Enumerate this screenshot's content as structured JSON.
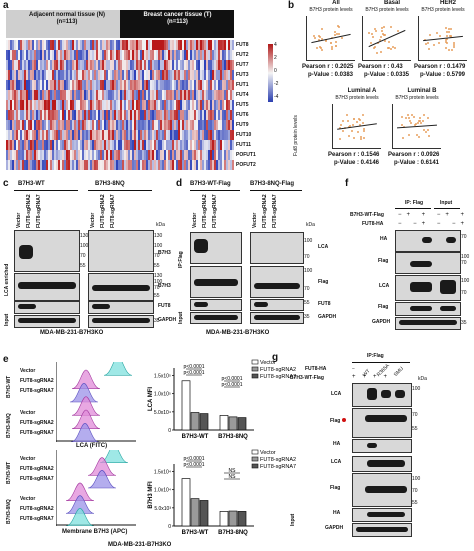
{
  "panel_a": {
    "letter": "a",
    "group_normal": "Adjacent normal tissue (N)\n(n=113)",
    "group_normal_l1": "Adjacent normal tissue (N)",
    "group_normal_l2": "(n=113)",
    "group_tumor_l1": "Breast cancer tissue (T)",
    "group_tumor_l2": "(n=113)",
    "tissue_label": "Tissue",
    "genes": [
      "FUT8",
      "FUT2",
      "FUT7",
      "FUT3",
      "FUT1",
      "FUT4",
      "FUT5",
      "FUT6",
      "FUT9",
      "FUT10",
      "FUT11",
      "POFUT1",
      "POFUT2"
    ],
    "scale": [
      "4",
      "2",
      "0",
      "-2",
      "-4"
    ]
  },
  "panel_b": {
    "letter": "b",
    "ylabel": "Fut8 protein levels",
    "plots": [
      {
        "group": "All",
        "xlabel": "B7H3 protein levels",
        "r": "Pearson  r : 0.2025",
        "p": "p-Value : 0.0383"
      },
      {
        "group": "Basal",
        "xlabel": "B7H3 protein levels",
        "r": "Pearson  r : 0.43",
        "p": "p-Value : 0.0335"
      },
      {
        "group": "HER2",
        "xlabel": "B7H3 protein levels",
        "r": "Pearson  r : 0.1479",
        "p": "p-Value : 0.5799"
      },
      {
        "group": "Luminal A",
        "xlabel": "B7H3 protein levels",
        "r": "Pearson  r : 0.1546",
        "p": "p-Value : 0.4146"
      },
      {
        "group": "Luminal B",
        "xlabel": "B7H3 protein levels",
        "r": "Pearson  r : 0.0926",
        "p": "p-Value : 0.6141"
      }
    ]
  },
  "panel_c": {
    "letter": "c",
    "title_left": "B7H3-WT",
    "title_right": "B7H3-8NQ",
    "lanes": [
      "Vector",
      "FUT8-sgRNA2",
      "FUT8-sgRNA7"
    ],
    "kda": "kDa",
    "marks_top": [
      "130",
      "100",
      "70",
      "55"
    ],
    "marks_mid": [
      "130",
      "100",
      "70",
      "55"
    ],
    "marks_bottom": [
      "35"
    ],
    "side_lca": "LCA enriched",
    "side_input": "Input",
    "rows": [
      "B7H3",
      "B7H3",
      "FUT8",
      "GAPDH"
    ],
    "footer": "MDA-MB-231-B7H3KO"
  },
  "panel_d": {
    "letter": "d",
    "title_left": "B7H3-WT-Flag",
    "title_right": "B7H3-8NQ-Flag",
    "lanes": [
      "Vector",
      "FUT8-sgRNA2",
      "FUT8-sgRNA7"
    ],
    "kda": "kDa",
    "side_ip": "IP:Flag",
    "side_input": "Input",
    "rows": [
      "LCA",
      "Flag",
      "FUT8",
      "GAPDH"
    ],
    "marks": [
      "100",
      "70",
      "100",
      "70",
      "55",
      "35"
    ],
    "footer": "MDA-MB-231-B7H3KO"
  },
  "panel_e": {
    "letter": "e",
    "hist_top_xlabel": "LCA (FITC)",
    "hist_bottom_xlabel": "Membrane  B7H3 (APC)",
    "row_labels": [
      "Vector",
      "FUT8-sgRNA2",
      "FUT8-sgRNA7"
    ],
    "group_wt": "B7H3-WT",
    "group_8nq": "B7H3-8NQ",
    "footer": "MDA-MB-231-B7H3KO",
    "legend": [
      "Vector",
      "FUT8-sgRNA2",
      "FUT8-sgRNA7"
    ],
    "bar_top": {
      "ylabel": "LCA MFI",
      "yticks": [
        "1.5x10⁵",
        "1.0x10⁵",
        "5.0x10⁴",
        "0"
      ],
      "categories": [
        "B7H3-WT",
        "B7H3-8NQ"
      ],
      "pvals": [
        "p<0.0001",
        "p<0.0001",
        "p<0.0001",
        "p<0.0001"
      ]
    },
    "bar_bottom": {
      "ylabel": "B7H3 MFI",
      "yticks": [
        "1.5x10⁴",
        "1.0x10⁴",
        "5.0x10³",
        "0"
      ],
      "categories": [
        "B7H3-WT",
        "B7H3-8NQ"
      ],
      "pvals": [
        "p<0.0001",
        "p<0.0001",
        "NS",
        "NS"
      ]
    }
  },
  "panel_f": {
    "letter": "f",
    "ip_label": "IP: Flag",
    "input_label": "Input",
    "row_cond1": "B7H3-WT-Flag",
    "row_cond2": "FUT8-HA",
    "marks": [
      "70",
      "100",
      "70",
      "100",
      "70",
      "35"
    ],
    "kda": "kDa",
    "rows": [
      "HA",
      "Flag",
      "LCA",
      "Flag",
      "GAPDH"
    ]
  },
  "panel_g": {
    "letter": "g",
    "ip_label": "IP:Flag",
    "cond1": "FUT8-HA",
    "cond2": "B7H3-WT-Flag",
    "lanes": [
      "WT",
      "R365A",
      "SMU"
    ],
    "kda": "kDa",
    "marks": [
      "100",
      "70",
      "55",
      "100",
      "70",
      "55"
    ],
    "rows": [
      "LCA",
      "Flag",
      "HA",
      "LCA",
      "Flag",
      "HA",
      "GAPDH"
    ],
    "side_input": "Input"
  },
  "chart_data": [
    {
      "type": "bar",
      "title": "",
      "ylabel": "LCA MFI",
      "categories": [
        "B7H3-WT",
        "B7H3-8NQ"
      ],
      "series": [
        {
          "name": "Vector",
          "values": [
            135000,
            40000
          ]
        },
        {
          "name": "FUT8-sgRNA2",
          "values": [
            48000,
            36000
          ]
        },
        {
          "name": "FUT8-sgRNA7",
          "values": [
            45000,
            34000
          ]
        }
      ],
      "ylim": [
        0,
        170000
      ]
    },
    {
      "type": "bar",
      "title": "",
      "ylabel": "B7H3 MFI",
      "categories": [
        "B7H3-WT",
        "B7H3-8NQ"
      ],
      "series": [
        {
          "name": "Vector",
          "values": [
            13000,
            4000
          ]
        },
        {
          "name": "FUT8-sgRNA2",
          "values": [
            7500,
            4100
          ]
        },
        {
          "name": "FUT8-sgRNA7",
          "values": [
            7000,
            4000
          ]
        }
      ],
      "ylim": [
        0,
        17000
      ]
    }
  ]
}
